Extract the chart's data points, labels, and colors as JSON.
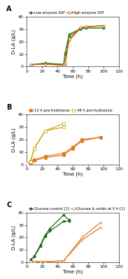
{
  "panel_A": {
    "title": "A",
    "series": [
      {
        "label": "Low enzyme SSF",
        "color": "#2a8a2a",
        "marker": "o",
        "marker_filled": true,
        "linewidth": 0.9,
        "x": [
          5,
          24,
          48,
          50,
          55,
          70,
          77,
          100
        ],
        "y": [
          1.5,
          2.5,
          1.5,
          10,
          25,
          30,
          31,
          31
        ]
      },
      {
        "label": "Low enzyme SSF r2",
        "color": "#2a8a2a",
        "marker": "o",
        "marker_filled": true,
        "linewidth": 0.9,
        "x": [
          5,
          24,
          48,
          50,
          55,
          70,
          77,
          100
        ],
        "y": [
          1.5,
          2.8,
          1.8,
          11,
          26,
          30.5,
          31,
          31
        ]
      },
      {
        "label": "High enzyme SSF",
        "color": "#c85a00",
        "marker": "o",
        "marker_filled": false,
        "linewidth": 0.9,
        "x": [
          5,
          24,
          48,
          50,
          55,
          70,
          77,
          100
        ],
        "y": [
          1.5,
          2.0,
          1.0,
          2.0,
          21,
          31,
          32,
          33
        ]
      },
      {
        "label": "High enzyme SSF r2",
        "color": "#c85a00",
        "marker": "o",
        "marker_filled": false,
        "linewidth": 0.9,
        "x": [
          5,
          24,
          48,
          50,
          55,
          70,
          77,
          100
        ],
        "y": [
          1.5,
          2.2,
          1.2,
          2.5,
          22,
          31.5,
          32,
          33
        ]
      }
    ],
    "ylabel": "D-LA (g/L)",
    "xlabel": "Time (h)",
    "ylim": [
      0,
      40
    ],
    "xlim": [
      0,
      120
    ],
    "yticks": [
      0,
      10,
      20,
      30,
      40
    ],
    "xticks": [
      0,
      20,
      40,
      60,
      80,
      100,
      120
    ]
  },
  "panel_B": {
    "title": "B",
    "series": [
      {
        "label": "12 h pre-hydrolysis",
        "color": "#e07820",
        "marker": "s",
        "marker_filled": true,
        "linewidth": 0.9,
        "x": [
          1,
          5,
          10,
          24,
          48,
          60,
          72,
          96
        ],
        "y": [
          0.5,
          1.5,
          3.0,
          5.5,
          7.5,
          13,
          19,
          22
        ]
      },
      {
        "label": "12 h pre-hydrolysis r2",
        "color": "#e07820",
        "marker": "s",
        "marker_filled": true,
        "linewidth": 0.9,
        "x": [
          1,
          5,
          10,
          24,
          48,
          60,
          72,
          96
        ],
        "y": [
          0.5,
          2.0,
          3.8,
          6.5,
          9.0,
          14,
          20,
          22
        ]
      },
      {
        "label": "48 h pre-hydrolysis",
        "color": "#c8a800",
        "marker": "s",
        "marker_filled": false,
        "linewidth": 0.9,
        "x": [
          1,
          5,
          10,
          24,
          48
        ],
        "y": [
          0.5,
          2.5,
          13,
          27,
          33
        ]
      },
      {
        "label": "48 h pre-hydrolysis r2",
        "color": "#c8a800",
        "marker": "s",
        "marker_filled": false,
        "linewidth": 0.9,
        "x": [
          1,
          5,
          10,
          24,
          48
        ],
        "y": [
          0.5,
          2.0,
          13,
          27,
          30
        ]
      }
    ],
    "ylabel": "D-LA (g/L)",
    "xlabel": "Time (h)",
    "ylim": [
      0,
      40
    ],
    "xlim": [
      0,
      120
    ],
    "yticks": [
      0,
      10,
      20,
      30,
      40
    ],
    "xticks": [
      0,
      20,
      40,
      60,
      80,
      100,
      120
    ]
  },
  "panel_C": {
    "title": "C",
    "series": [
      {
        "label": "Glucose control [1]",
        "color": "#1a6b1a",
        "marker": "o",
        "marker_filled": true,
        "linewidth": 0.9,
        "x": [
          5,
          10,
          18,
          24,
          30,
          48,
          55
        ],
        "y": [
          2.0,
          5.0,
          14,
          22,
          27,
          38,
          34
        ]
      },
      {
        "label": "Glucose control [1] r2",
        "color": "#1a6b1a",
        "marker": "o",
        "marker_filled": true,
        "linewidth": 0.9,
        "x": [
          5,
          10,
          18,
          24,
          30,
          48,
          55
        ],
        "y": [
          2.0,
          4.5,
          13,
          21,
          25,
          33,
          33
        ]
      },
      {
        "label": "Glucose & solids at 0 h [1]",
        "color": "#e07820",
        "marker": "o",
        "marker_filled": false,
        "linewidth": 0.9,
        "x": [
          5,
          10,
          18,
          24,
          48,
          72,
          96
        ],
        "y": [
          0.5,
          0.5,
          0.5,
          0.5,
          1.0,
          20,
          32
        ]
      },
      {
        "label": "Glucose & solids at 0 h [1] r2",
        "color": "#e07820",
        "marker": "o",
        "marker_filled": false,
        "linewidth": 0.9,
        "x": [
          5,
          10,
          18,
          24,
          48,
          72,
          96
        ],
        "y": [
          0.5,
          0.5,
          0.5,
          0.5,
          1.2,
          18,
          28
        ]
      }
    ],
    "ylabel": "D-LA (g/L)",
    "xlabel": "Time (h)",
    "ylim": [
      0,
      40
    ],
    "xlim": [
      0,
      120
    ],
    "yticks": [
      0,
      10,
      20,
      30,
      40
    ],
    "xticks": [
      0,
      20,
      40,
      60,
      80,
      100,
      120
    ]
  },
  "legend_A": {
    "entries": [
      {
        "label": "Low enzyme SSF",
        "color": "#2a8a2a",
        "marker": "o",
        "filled": true
      },
      {
        "label": "High enzyme SSF",
        "color": "#c85a00",
        "marker": "o",
        "filled": false
      }
    ]
  },
  "legend_B": {
    "entries": [
      {
        "label": "12 h pre-hydrolysis",
        "color": "#e07820",
        "marker": "s",
        "filled": true
      },
      {
        "label": "48 h pre-hydrolysis",
        "color": "#c8a800",
        "marker": "s",
        "filled": false
      }
    ]
  },
  "legend_C": {
    "entries": [
      {
        "label": "Glucose control [1]",
        "color": "#1a6b1a",
        "marker": "o",
        "filled": true
      },
      {
        "label": "Glucose & solids at 0 h [1]",
        "color": "#e07820",
        "marker": "o",
        "filled": false
      }
    ]
  }
}
